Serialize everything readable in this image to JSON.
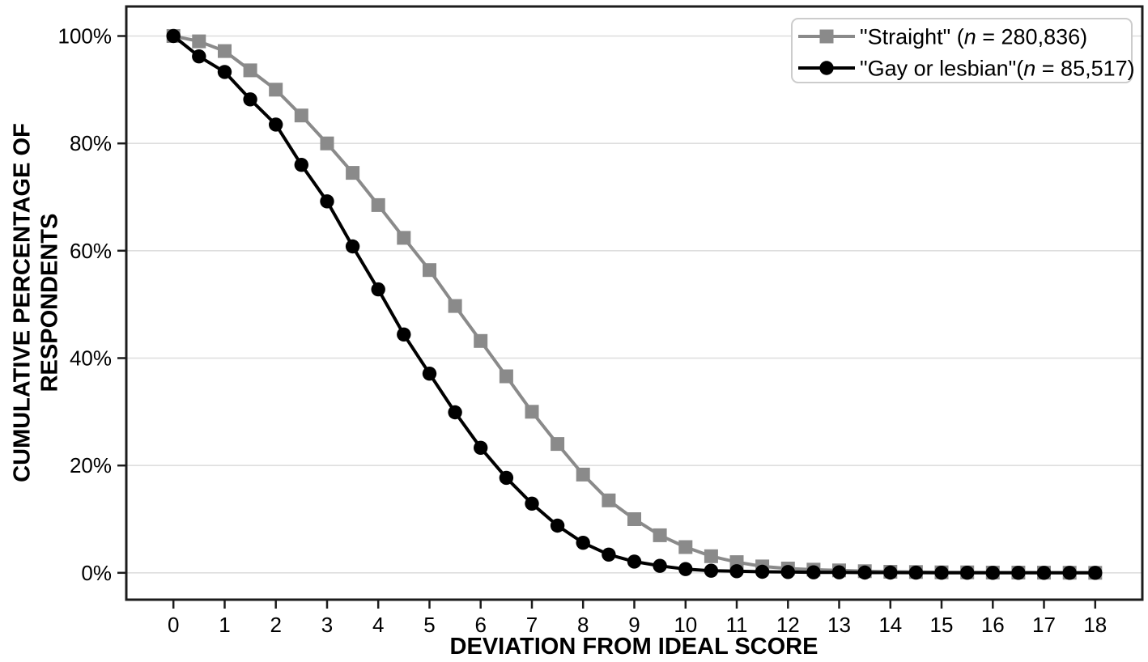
{
  "chart_data": {
    "type": "line",
    "title": "",
    "xlabel": "DEVIATION FROM IDEAL SCORE",
    "ylabel": "CUMULATIVE PERCENTAGE OF\nRESPONDENTS",
    "grid": "horizontal",
    "legend_position": "top-right",
    "xlim": [
      -0.92,
      18.92
    ],
    "ylim": [
      -5,
      105.5
    ],
    "x": [
      0,
      0.5,
      1,
      1.5,
      2,
      2.5,
      3,
      3.5,
      4,
      4.5,
      5,
      5.5,
      6,
      6.5,
      7,
      7.5,
      8,
      8.5,
      9,
      9.5,
      10,
      10.5,
      11,
      11.5,
      12,
      12.5,
      13,
      13.5,
      14,
      14.5,
      15,
      15.5,
      16,
      16.5,
      17,
      17.5,
      18
    ],
    "series": [
      {
        "id": "straight",
        "marker": "square",
        "color": "#8a8a8a",
        "legend": {
          "pre": "\"Straight\" (",
          "n": "n",
          "post": " = 280,836)"
        },
        "values": [
          100,
          99,
          97.2,
          93.6,
          90,
          85.2,
          80,
          74.5,
          68.5,
          62.4,
          56.4,
          49.7,
          43.2,
          36.6,
          30,
          24,
          18.3,
          13.5,
          10,
          7,
          4.8,
          3.1,
          2,
          1.2,
          0.8,
          0.6,
          0.45,
          0.3,
          0.2,
          0.15,
          0.1,
          0.1,
          0.05,
          0.05,
          0.03,
          0.02,
          0
        ]
      },
      {
        "id": "gay-or-lesbian",
        "marker": "circle",
        "color": "#000000",
        "legend": {
          "pre": "\"Gay or lesbian\"(",
          "n": "n",
          "post": " = 85,517)"
        },
        "values": [
          100,
          96.2,
          93.3,
          88.2,
          83.5,
          76,
          69.2,
          60.8,
          52.8,
          44.4,
          37.1,
          29.9,
          23.3,
          17.7,
          12.9,
          8.8,
          5.6,
          3.4,
          2.1,
          1.3,
          0.7,
          0.4,
          0.3,
          0.2,
          0.15,
          0.1,
          0.1,
          0.05,
          0.05,
          0.03,
          0.02,
          0.02,
          0.01,
          0.01,
          0.01,
          0,
          0
        ]
      }
    ],
    "x_axis": {
      "values": [
        0,
        1,
        2,
        3,
        4,
        5,
        6,
        7,
        8,
        9,
        10,
        11,
        12,
        13,
        14,
        15,
        16,
        17,
        18
      ],
      "labels": [
        "0",
        "1",
        "2",
        "3",
        "4",
        "5",
        "6",
        "7",
        "8",
        "9",
        "10",
        "11",
        "12",
        "13",
        "14",
        "15",
        "16",
        "17",
        "18"
      ]
    },
    "y_axis": {
      "values": [
        0,
        20,
        40,
        60,
        80,
        100
      ],
      "labels": [
        "0%",
        "20%",
        "40%",
        "60%",
        "80%",
        "100%"
      ]
    },
    "colors": {
      "grid": "#dedede",
      "frame": "#1c1c1c",
      "text": "#000000",
      "legend_border": "#cccccc",
      "background": "#ffffff"
    }
  }
}
